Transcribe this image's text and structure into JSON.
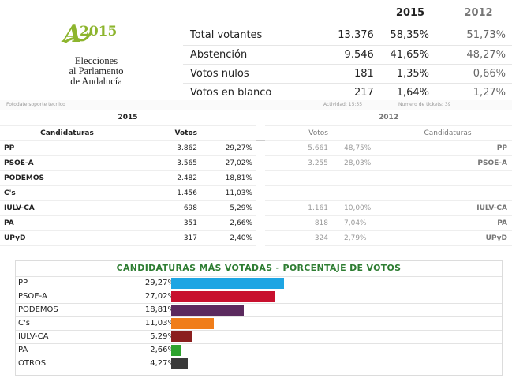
{
  "logo": {
    "letter": "A",
    "year": "2015",
    "lines": [
      "Elecciones",
      "al Parlamento",
      "de Andalucía"
    ]
  },
  "summary": {
    "year_2015": "2015",
    "year_2012": "2012",
    "rows": [
      {
        "label": "Total votantes",
        "votes": "13.376",
        "pct": "58,35%",
        "pct2012": "51,73%"
      },
      {
        "label": "Abstención",
        "votes": "9.546",
        "pct": "41,65%",
        "pct2012": "48,27%"
      },
      {
        "label": "Votos nulos",
        "votes": "181",
        "pct": "1,35%",
        "pct2012": "0,66%"
      },
      {
        "label": "Votos en blanco",
        "votes": "217",
        "pct": "1,64%",
        "pct2012": "1,27%"
      }
    ]
  },
  "ghost": {
    "left": "Fotodate soporte tecnico",
    "mid": "Actividad: 15:55",
    "right": "Numero de tickets: 39"
  },
  "cands": {
    "year_2015": "2015",
    "year_2012": "2012",
    "head_candidaturas": "Candidaturas",
    "head_votos": "Votos",
    "head_votos_2012": "Votos",
    "head_candidaturas_2012": "Candidaturas",
    "rows": [
      {
        "name": "PP",
        "votes": "3.862",
        "pct": "29,27%",
        "votes12": "5.661",
        "pct12": "48,75%",
        "name12": "PP"
      },
      {
        "name": "PSOE-A",
        "votes": "3.565",
        "pct": "27,02%",
        "votes12": "3.255",
        "pct12": "28,03%",
        "name12": "PSOE-A"
      },
      {
        "name": "PODEMOS",
        "votes": "2.482",
        "pct": "18,81%",
        "votes12": "",
        "pct12": "",
        "name12": ""
      },
      {
        "name": "C's",
        "votes": "1.456",
        "pct": "11,03%",
        "votes12": "",
        "pct12": "",
        "name12": ""
      },
      {
        "name": "IULV-CA",
        "votes": "698",
        "pct": "5,29%",
        "votes12": "1.161",
        "pct12": "10,00%",
        "name12": "IULV-CA"
      },
      {
        "name": "PA",
        "votes": "351",
        "pct": "2,66%",
        "votes12": "818",
        "pct12": "7,04%",
        "name12": "PA"
      },
      {
        "name": "UPyD",
        "votes": "317",
        "pct": "2,40%",
        "votes12": "324",
        "pct12": "2,79%",
        "name12": "UPyD"
      }
    ]
  },
  "chart_data": {
    "type": "bar",
    "title": "CANDIDATURAS MÁS VOTADAS - PORCENTAJE DE VOTOS",
    "categories": [
      "PP",
      "PSOE-A",
      "PODEMOS",
      "C's",
      "IULV-CA",
      "PA",
      "OTROS"
    ],
    "labels": [
      "29,27%",
      "27,02%",
      "18,81%",
      "11,03%",
      "5,29%",
      "2,66%",
      "4,27%"
    ],
    "values": [
      29.27,
      27.02,
      18.81,
      11.03,
      5.29,
      2.66,
      4.27
    ],
    "colors": [
      "#1ea5e3",
      "#c8102e",
      "#5b2a5e",
      "#f07d1a",
      "#8b1f1f",
      "#2ea32e",
      "#3a3a3a"
    ],
    "xlim": [
      0,
      30
    ]
  }
}
